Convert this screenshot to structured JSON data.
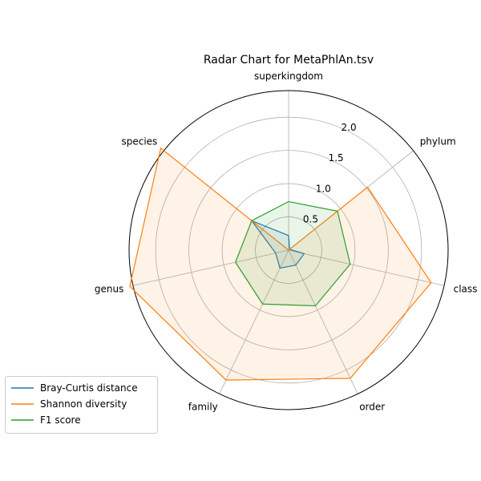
{
  "chart_data": {
    "type": "radar",
    "title": "Radar Chart for MetaPhlAn.tsv",
    "axes": [
      "superkingdom",
      "phylum",
      "class",
      "order",
      "family",
      "genus",
      "species"
    ],
    "rlim": [
      0,
      2.4
    ],
    "rticks": [
      0.5,
      1.0,
      1.5,
      2.0
    ],
    "rtick_labels": [
      "0.5",
      "1.0",
      "1.5",
      "2.0"
    ],
    "grid": true,
    "legend_position": "lower-left",
    "series": [
      {
        "name": "Bray-Curtis distance",
        "color": "#1f77b4",
        "values": [
          0.22,
          0.02,
          0.24,
          0.25,
          0.3,
          0.2,
          0.71
        ]
      },
      {
        "name": "Shannon diversity",
        "color": "#ff7f0e",
        "values": [
          0.0,
          1.52,
          2.2,
          2.14,
          2.17,
          2.45,
          2.46
        ]
      },
      {
        "name": "F1 score",
        "color": "#2ca02c",
        "values": [
          0.73,
          0.94,
          0.95,
          0.93,
          0.9,
          0.82,
          0.71
        ]
      }
    ]
  }
}
